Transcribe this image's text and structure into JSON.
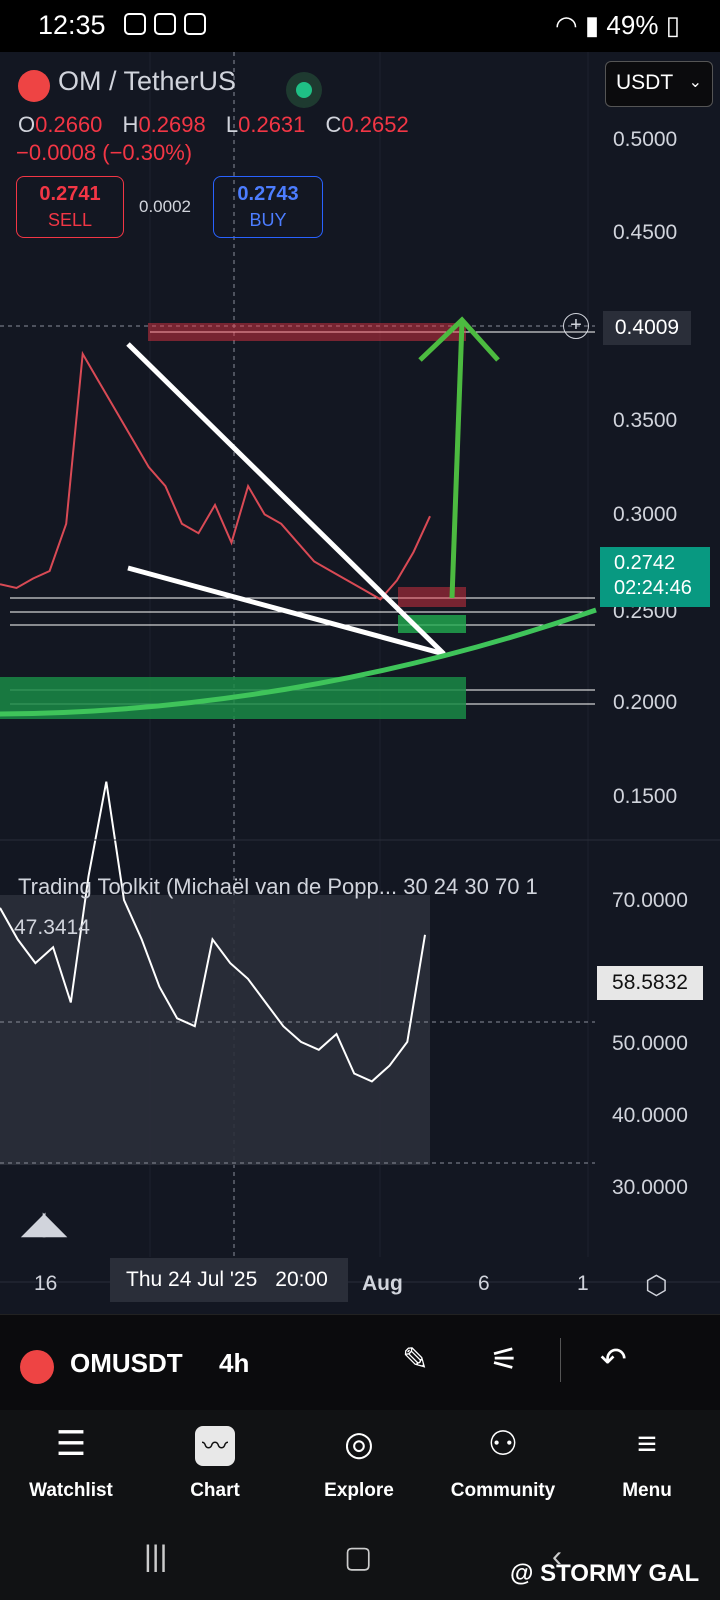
{
  "status_bar": {
    "time": "12:35",
    "battery": "49%"
  },
  "header": {
    "symbol_title": "OM / TetherUS",
    "ohlc": {
      "o_label": "O",
      "o": "0.2660",
      "h_label": "H",
      "h": "0.2698",
      "l_label": "L",
      "l": "0.2631",
      "c_label": "C",
      "c": "0.2652"
    },
    "change": "−0.0008 (−0.30%)",
    "sell_price": "0.2741",
    "sell_label": "SELL",
    "spread": "0.0002",
    "buy_price": "0.2743",
    "buy_label": "BUY",
    "currency": "USDT"
  },
  "price_axis": {
    "ticks": [
      "0.5000",
      "0.4500",
      "0.3500",
      "0.3000",
      "0.2500",
      "0.2000",
      "0.1500"
    ],
    "crosshair_label": "0.4009",
    "last_price": "0.2742",
    "countdown": "02:24:46"
  },
  "indicator": {
    "title": "Trading Toolkit (Michaël van de Popp... 30 24 30 70 1",
    "cursor_value": "47.3414",
    "current_value": "58.5832",
    "ticks": [
      "70.0000",
      "50.0000",
      "40.0000",
      "30.0000"
    ]
  },
  "time_axis": {
    "ticks": [
      "16",
      "Aug",
      "6",
      "1"
    ],
    "crosshair_date": "Thu 24 Jul '25",
    "crosshair_time": "20:00"
  },
  "toolbar": {
    "symbol": "OMUSDT",
    "timeframe": "4h"
  },
  "nav": {
    "items": [
      "Watchlist",
      "Chart",
      "Explore",
      "Community",
      "Menu"
    ]
  },
  "watermark": "@ STORMY GAL",
  "chart_data": [
    {
      "type": "line",
      "series": [
        {
          "values": [
            0.238,
            0.236,
            0.241,
            0.245,
            0.27,
            0.36,
            0.345,
            0.33,
            0.315,
            0.3,
            0.29,
            0.27,
            0.265,
            0.28,
            0.26,
            0.29,
            0.275,
            0.27,
            0.26,
            0.25,
            0.245,
            0.24,
            0.235,
            0.23,
            0.24,
            0.255,
            0.274
          ]
        }
      ],
      "ylim": [
        0.13,
        0.52
      ]
    },
    {
      "type": "line",
      "series": [
        {
          "values": [
            62,
            58,
            55,
            57,
            50,
            66,
            78,
            63,
            58,
            52,
            48,
            47,
            58,
            55,
            53,
            50,
            47,
            45,
            44,
            46,
            41,
            40,
            42,
            45,
            58.58
          ]
        }
      ],
      "ylim": [
        28,
        72
      ]
    }
  ]
}
